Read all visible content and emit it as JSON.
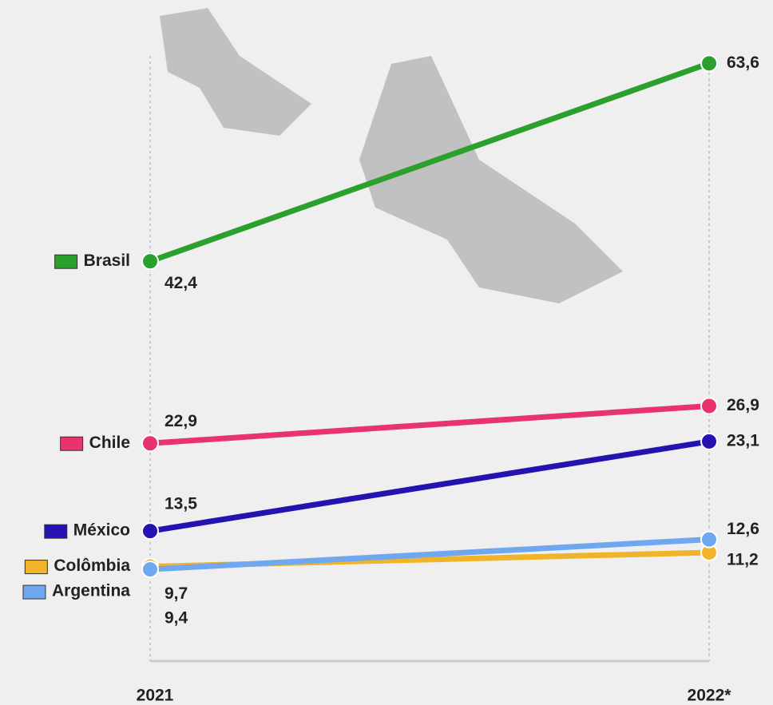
{
  "chart_data": {
    "type": "slope",
    "categories": [
      "2021",
      "2022*"
    ],
    "ylim": [
      0,
      65
    ],
    "series": [
      {
        "name": "Brasil",
        "color": "#2ca02c",
        "values": [
          42.4,
          63.6
        ],
        "value_labels": [
          "42,4",
          "63,6"
        ]
      },
      {
        "name": "Chile",
        "color": "#e8336d",
        "values": [
          22.9,
          26.9
        ],
        "value_labels": [
          "22,9",
          "26,9"
        ]
      },
      {
        "name": "México",
        "color": "#2413b0",
        "values": [
          13.5,
          23.1
        ],
        "value_labels": [
          "13,5",
          "23,1"
        ]
      },
      {
        "name": "Colômbia",
        "color": "#f0b429",
        "values": [
          9.7,
          11.2
        ],
        "value_labels": [
          "9,7",
          "11,2"
        ]
      },
      {
        "name": "Argentina",
        "color": "#6fa8f0",
        "values": [
          9.4,
          12.6
        ],
        "value_labels": [
          "9,4",
          "12,6"
        ]
      }
    ]
  }
}
